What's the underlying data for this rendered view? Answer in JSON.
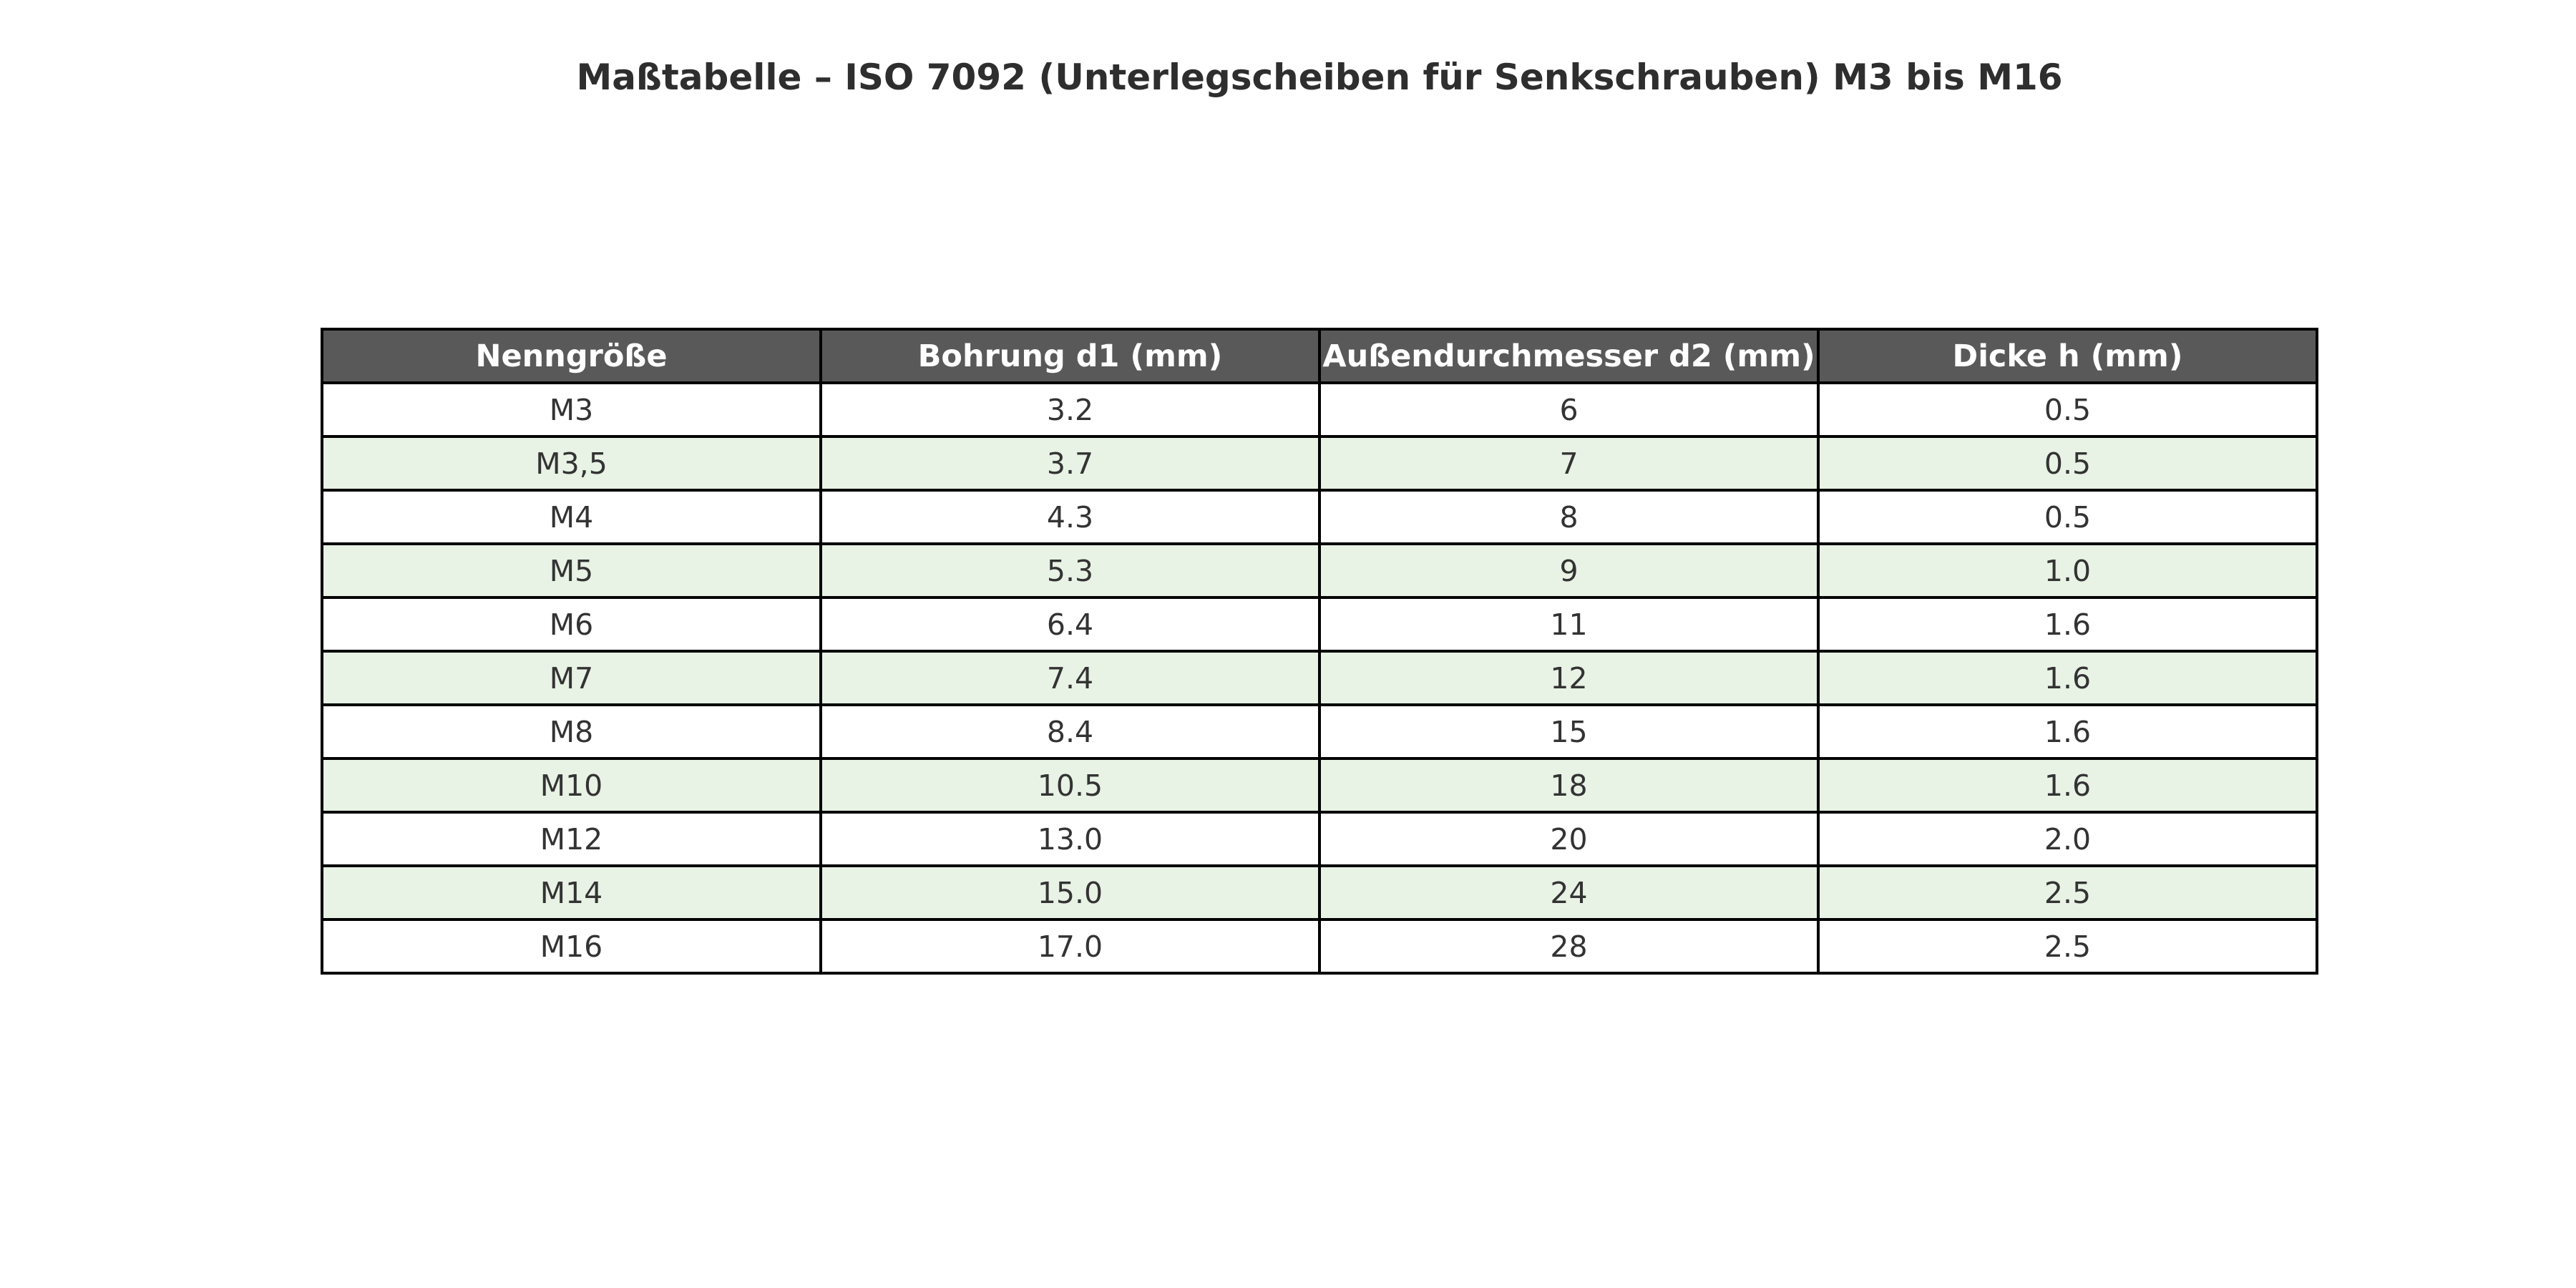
{
  "title": "Maßtabelle – ISO 7092 (Unterlegscheiben für Senkschrauben) M3 bis M16",
  "colors": {
    "header_bg": "#595959",
    "header_text": "#ffffff",
    "row_alt_bg": "#e8f2e5",
    "border": "#000000",
    "cell_text": "#333333",
    "title_text": "#2e2e2e",
    "background": "#ffffff"
  },
  "table": {
    "columns": [
      "Nenngröße",
      "Bohrung d1 (mm)",
      "Außendurchmesser d2 (mm)",
      "Dicke h (mm)"
    ],
    "rows": [
      {
        "cells": [
          "M3",
          "3.2",
          "6",
          "0.5"
        ],
        "alt": false
      },
      {
        "cells": [
          "M3,5",
          "3.7",
          "7",
          "0.5"
        ],
        "alt": true
      },
      {
        "cells": [
          "M4",
          "4.3",
          "8",
          "0.5"
        ],
        "alt": false
      },
      {
        "cells": [
          "M5",
          "5.3",
          "9",
          "1.0"
        ],
        "alt": true
      },
      {
        "cells": [
          "M6",
          "6.4",
          "11",
          "1.6"
        ],
        "alt": false
      },
      {
        "cells": [
          "M7",
          "7.4",
          "12",
          "1.6"
        ],
        "alt": true
      },
      {
        "cells": [
          "M8",
          "8.4",
          "15",
          "1.6"
        ],
        "alt": false
      },
      {
        "cells": [
          "M10",
          "10.5",
          "18",
          "1.6"
        ],
        "alt": true
      },
      {
        "cells": [
          "M12",
          "13.0",
          "20",
          "2.0"
        ],
        "alt": false
      },
      {
        "cells": [
          "M14",
          "15.0",
          "24",
          "2.5"
        ],
        "alt": true
      },
      {
        "cells": [
          "M16",
          "17.0",
          "28",
          "2.5"
        ],
        "alt": false
      }
    ]
  },
  "chart_data": {
    "type": "table",
    "title": "Maßtabelle – ISO 7092 (Unterlegscheiben für Senkschrauben) M3 bis M16",
    "columns": [
      "Nenngröße",
      "Bohrung d1 (mm)",
      "Außendurchmesser d2 (mm)",
      "Dicke h (mm)"
    ],
    "rows": [
      [
        "M3",
        3.2,
        6,
        0.5
      ],
      [
        "M3,5",
        3.7,
        7,
        0.5
      ],
      [
        "M4",
        4.3,
        8,
        0.5
      ],
      [
        "M5",
        5.3,
        9,
        1.0
      ],
      [
        "M6",
        6.4,
        11,
        1.6
      ],
      [
        "M7",
        7.4,
        12,
        1.6
      ],
      [
        "M8",
        8.4,
        15,
        1.6
      ],
      [
        "M10",
        10.5,
        18,
        1.6
      ],
      [
        "M12",
        13.0,
        20,
        2.0
      ],
      [
        "M14",
        15.0,
        24,
        2.5
      ],
      [
        "M16",
        17.0,
        28,
        2.5
      ]
    ],
    "layout": {
      "header_style": "dark-gray-bold-white",
      "striped": true,
      "grid": true,
      "legend_position": "none"
    }
  }
}
